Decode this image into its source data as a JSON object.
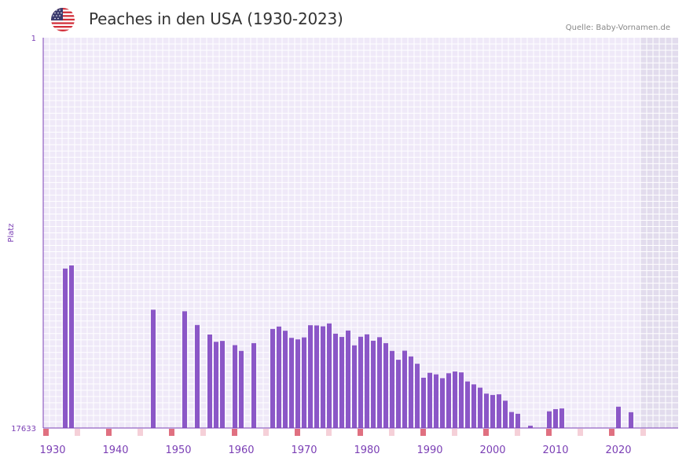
{
  "header": {
    "title": "Peaches in den USA (1930-2023)",
    "source": "Quelle: Baby-Vornamen.de",
    "flag_icon": "usa-flag-icon"
  },
  "colors": {
    "bar": "#8b57c7",
    "axis": "#7b3fb5",
    "plot_bg": "#efe9f8",
    "future_bg": "#e2dced",
    "marker_strong": "#e07080",
    "marker_light": "#f5d0d8"
  },
  "chart_data": {
    "type": "bar",
    "title": "Peaches in den USA (1930-2023)",
    "xlabel": "",
    "ylabel": "Platz",
    "y_inverted": true,
    "ylim": [
      1,
      17633
    ],
    "ytick_labels": [
      "1",
      "17633"
    ],
    "xlim": [
      1928.5,
      2029.5
    ],
    "xtick_values": [
      1930,
      1940,
      1950,
      1960,
      1970,
      1980,
      1990,
      2000,
      2010,
      2020
    ],
    "xtick_labels": [
      "1930",
      "1940",
      "1950",
      "1960",
      "1970",
      "1980",
      "1990",
      "2000",
      "2010",
      "2020"
    ],
    "shaded_from_year": 2023,
    "years": [
      1932,
      1933,
      1946,
      1951,
      1953,
      1955,
      1956,
      1957,
      1959,
      1960,
      1962,
      1965,
      1966,
      1967,
      1968,
      1969,
      1970,
      1971,
      1972,
      1973,
      1974,
      1975,
      1976,
      1977,
      1978,
      1979,
      1980,
      1981,
      1982,
      1983,
      1984,
      1985,
      1986,
      1987,
      1988,
      1989,
      1990,
      1991,
      1992,
      1993,
      1994,
      1995,
      1996,
      1997,
      1998,
      1999,
      2000,
      2001,
      2002,
      2003,
      2004,
      2006,
      2009,
      2010,
      2011,
      2020,
      2022
    ],
    "values": [
      10430,
      10290,
      12290,
      12360,
      12980,
      13410,
      13740,
      13700,
      13890,
      14150,
      13800,
      13160,
      13050,
      13240,
      13560,
      13630,
      13540,
      12990,
      13000,
      13040,
      12910,
      13370,
      13520,
      13230,
      13900,
      13510,
      13400,
      13690,
      13530,
      13800,
      14150,
      14550,
      14140,
      14400,
      14730,
      15360,
      15140,
      15210,
      15380,
      15160,
      15080,
      15120,
      15530,
      15660,
      15810,
      16080,
      16140,
      16110,
      16400,
      16910,
      16990,
      17530,
      16880,
      16780,
      16750,
      16670,
      16920
    ]
  }
}
